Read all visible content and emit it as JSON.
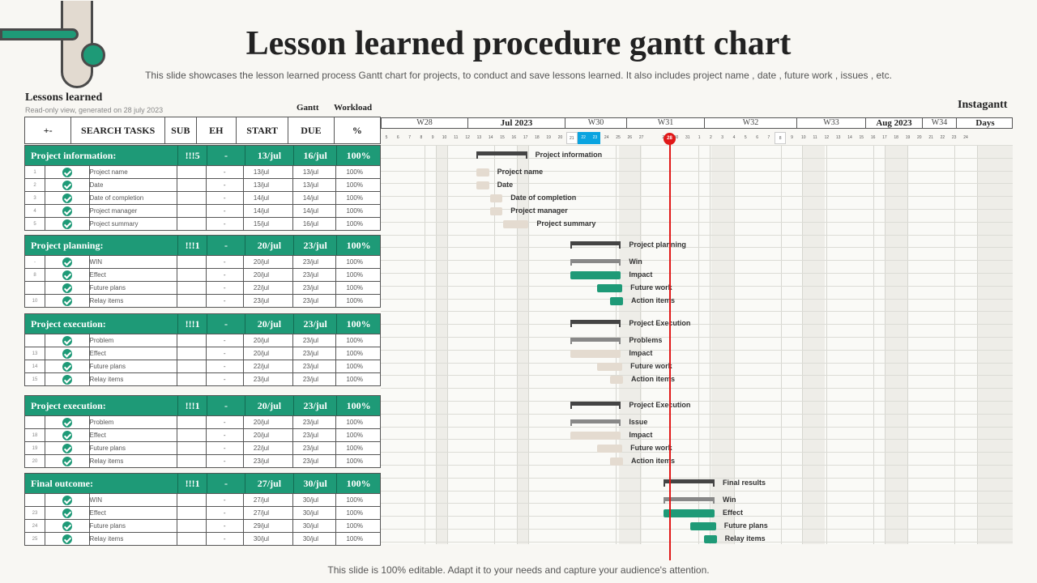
{
  "title": "Lesson learned procedure gantt chart",
  "subtitle": "This slide showcases the lesson learned process Gantt chart for projects, to conduct and save lessons learned. It also includes project name , date , future work , issues , etc.",
  "footer": "This slide is 100% editable. Adapt it to your needs and capture your audience's attention.",
  "panel": {
    "title": "Lessons learned",
    "subtitle": "Read-only view, generated on 28 july 2023",
    "gantt_label": "Gantt",
    "workload_label": "Workload",
    "brand": "Instagantt"
  },
  "columns": {
    "toggle": "+-",
    "tasks": "SEARCH TASKS",
    "sub": "SUB",
    "eh": "EH",
    "start": "START",
    "due": "DUE",
    "pct": "%"
  },
  "colors": {
    "accent": "#1e9a77",
    "today": "#e01818",
    "highlight": "#0aa4e0"
  },
  "timeline": {
    "weeks": [
      "W28",
      "Jul 2023",
      "W30",
      "W31",
      "W32",
      "W33",
      "Aug 2023",
      "W34",
      "Days"
    ],
    "days": [
      "5",
      "6",
      "7",
      "8",
      "9",
      "10",
      "11",
      "12",
      "13",
      "14",
      "15",
      "16",
      "17",
      "18",
      "19",
      "20",
      "21",
      "22",
      "23",
      "24",
      "25",
      "26",
      "27",
      "28",
      "29",
      "30",
      "31",
      "1",
      "2",
      "3",
      "4",
      "5",
      "6",
      "7",
      "8",
      "9",
      "10",
      "11",
      "12",
      "13",
      "14",
      "15",
      "16",
      "17",
      "18",
      "19",
      "20",
      "21",
      "22",
      "23",
      "24"
    ],
    "today": "28"
  },
  "chart_data": {
    "type": "table",
    "groups": [
      {
        "name": "Project information:",
        "sub": "!!!5",
        "eh": "-",
        "start": "13/jul",
        "due": "16/jul",
        "pct": "100%",
        "bar_label": "Project information",
        "items": [
          {
            "num": "1",
            "name": "Project name",
            "eh": "-",
            "start": "13/jul",
            "due": "13/jul",
            "pct": "100%",
            "bar_label": "Project name"
          },
          {
            "num": "2",
            "name": "Date",
            "eh": "-",
            "start": "13/jul",
            "due": "13/jul",
            "pct": "100%",
            "bar_label": "Date"
          },
          {
            "num": "3",
            "name": "Date of completion",
            "eh": "-",
            "start": "14/jul",
            "due": "14/jul",
            "pct": "100%",
            "bar_label": "Date of completion"
          },
          {
            "num": "4",
            "name": "Project manager",
            "eh": "-",
            "start": "14/jul",
            "due": "14/jul",
            "pct": "100%",
            "bar_label": "Project manager"
          },
          {
            "num": "5",
            "name": "Project summary",
            "eh": "-",
            "start": "15/jul",
            "due": "16/jul",
            "pct": "100%",
            "bar_label": "Project summary"
          }
        ]
      },
      {
        "name": "Project planning:",
        "sub": "!!!1",
        "eh": "-",
        "start": "20/jul",
        "due": "23/jul",
        "pct": "100%",
        "bar_label": "Project planning",
        "items": [
          {
            "num": "-",
            "name": "WIN",
            "eh": "-",
            "start": "20/jul",
            "due": "23/jul",
            "pct": "100%",
            "bar_label": "Win"
          },
          {
            "num": "8",
            "name": "Effect",
            "eh": "-",
            "start": "20/jul",
            "due": "23/jul",
            "pct": "100%",
            "bar_label": "Impact"
          },
          {
            "num": "",
            "name": "Future plans",
            "eh": "-",
            "start": "22/jul",
            "due": "23/jul",
            "pct": "100%",
            "bar_label": "Future work"
          },
          {
            "num": "10",
            "name": "Relay items",
            "eh": "-",
            "start": "23/jul",
            "due": "23/jul",
            "pct": "100%",
            "bar_label": "Action  items"
          }
        ]
      },
      {
        "name": "Project execution:",
        "sub": "!!!1",
        "eh": "-",
        "start": "20/jul",
        "due": "23/jul",
        "pct": "100%",
        "bar_label": "Project Execution",
        "items": [
          {
            "num": "",
            "name": "Problem",
            "eh": "-",
            "start": "20/jul",
            "due": "23/jul",
            "pct": "100%",
            "bar_label": "Problems"
          },
          {
            "num": "13",
            "name": "Effect",
            "eh": "-",
            "start": "20/jul",
            "due": "23/jul",
            "pct": "100%",
            "bar_label": "Impact"
          },
          {
            "num": "14",
            "name": "Future plans",
            "eh": "-",
            "start": "22/jul",
            "due": "23/jul",
            "pct": "100%",
            "bar_label": "Future work"
          },
          {
            "num": "15",
            "name": "Relay items",
            "eh": "-",
            "start": "23/jul",
            "due": "23/jul",
            "pct": "100%",
            "bar_label": "Action  items"
          }
        ]
      },
      {
        "name": "Project execution:",
        "sub": "!!!1",
        "eh": "-",
        "start": "20/jul",
        "due": "23/jul",
        "pct": "100%",
        "bar_label": "Project Execution",
        "items": [
          {
            "num": "",
            "name": "Problem",
            "eh": "-",
            "start": "20/jul",
            "due": "23/jul",
            "pct": "100%",
            "bar_label": "Issue"
          },
          {
            "num": "18",
            "name": "Effect",
            "eh": "-",
            "start": "20/jul",
            "due": "23/jul",
            "pct": "100%",
            "bar_label": "Impact"
          },
          {
            "num": "19",
            "name": "Future plans",
            "eh": "-",
            "start": "22/jul",
            "due": "23/jul",
            "pct": "100%",
            "bar_label": "Future work"
          },
          {
            "num": "20",
            "name": "Relay items",
            "eh": "-",
            "start": "23/jul",
            "due": "23/jul",
            "pct": "100%",
            "bar_label": "Action  items"
          }
        ]
      },
      {
        "name": "Final outcome:",
        "sub": "!!!1",
        "eh": "-",
        "start": "27/jul",
        "due": "30/jul",
        "pct": "100%",
        "bar_label": "Final results",
        "items": [
          {
            "num": "",
            "name": "WIN",
            "eh": "-",
            "start": "27/jul",
            "due": "30/jul",
            "pct": "100%",
            "bar_label": "Win"
          },
          {
            "num": "23",
            "name": "Effect",
            "eh": "-",
            "start": "27/jul",
            "due": "30/jul",
            "pct": "100%",
            "bar_label": "Effect"
          },
          {
            "num": "24",
            "name": "Future plans",
            "eh": "-",
            "start": "29/jul",
            "due": "30/jul",
            "pct": "100%",
            "bar_label": "Future plans"
          },
          {
            "num": "25",
            "name": "Relay items",
            "eh": "-",
            "start": "30/jul",
            "due": "30/jul",
            "pct": "100%",
            "bar_label": "Relay items"
          }
        ]
      }
    ]
  }
}
